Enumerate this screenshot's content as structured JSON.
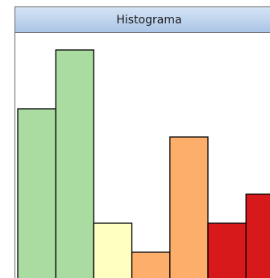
{
  "chart_data": {
    "type": "bar",
    "title": "Histograma",
    "categories": [
      null,
      null,
      null,
      null,
      null,
      null,
      null
    ],
    "values": [
      210,
      283,
      68,
      32,
      175,
      68,
      104
    ],
    "colors": [
      "#aadba0",
      "#aadba0",
      "#ffffc0",
      "#fdae6b",
      "#fdae6b",
      "#d7191c",
      "#d7191c"
    ],
    "ylim": [
      0,
      300
    ]
  }
}
